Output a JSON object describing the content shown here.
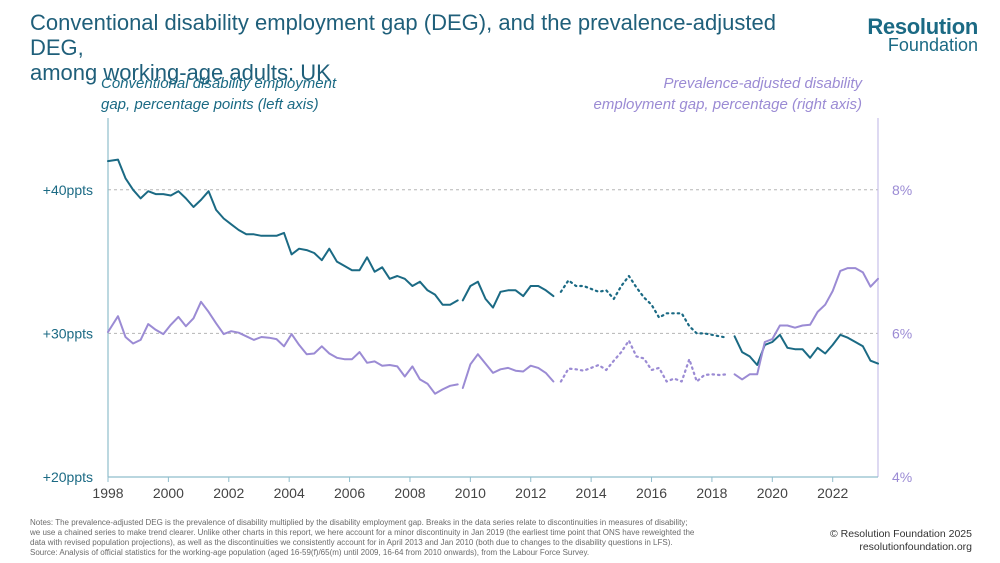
{
  "header": {
    "title_line1": "Conventional disability employment gap (DEG), and the prevalence-adjusted DEG,",
    "title_line2": "among working-age adults: UK"
  },
  "logo": {
    "name_line1": "Resolution",
    "name_line2": "Foundation"
  },
  "footer": {
    "notes_line1": "Notes: The prevalence-adjusted DEG is the prevalence of disability multiplied by the disability employment gap. Breaks in the data series relate to discontinuities in measures of disability;",
    "notes_line2": "we use a chained series to make trend clearer. Unlike other charts in this report, we here account for a minor discontinuity in Jan 2019 (the earliest time point that ONS have reweighted the",
    "notes_line3": "data with revised population projections), as well as the discontinuities we consistently account for in April 2013 and Jan 2010 (both due to changes to the disability questions in LFS).",
    "notes_line4": "Source: Analysis of official statistics for the working-age population (aged 16-59(f)/65(m) until 2009, 16-64 from 2010 onwards), from the Labour Force Survey.",
    "copyright": "© Resolution Foundation 2025",
    "website": "resolutionfoundation.org"
  },
  "colors": {
    "teal": "#1b6a84",
    "purple": "#9b8bd4",
    "title": "#1f5f7a",
    "grid": "#b5b5b5"
  },
  "chart_data": {
    "type": "line",
    "left_axis_label_line1": "Conventional disability employment",
    "left_axis_label_line2": "gap, percentage points (left axis)",
    "right_axis_label_line1": "Prevalence-adjusted disability",
    "right_axis_label_line2": "employment gap, percentage (right axis)",
    "y_left": {
      "min": 20,
      "max": 45,
      "ticks": [
        20,
        30,
        40
      ],
      "tick_labels": [
        "+20ppts",
        "+30ppts",
        "+40ppts"
      ]
    },
    "y_right": {
      "min": 4,
      "max": 9,
      "ticks": [
        4,
        6,
        8
      ],
      "tick_labels": [
        "4%",
        "6%",
        "8%"
      ]
    },
    "x": {
      "min": 1998,
      "max": 2023.5,
      "ticks": [
        1998,
        2000,
        2002,
        2004,
        2006,
        2008,
        2010,
        2012,
        2014,
        2016,
        2018,
        2020,
        2022
      ],
      "tick_labels": [
        "1998",
        "2000",
        "2002",
        "2004",
        "2006",
        "2008",
        "2010",
        "2012",
        "2014",
        "2016",
        "2018",
        "2020",
        "2022"
      ]
    },
    "gridlines_at_left_values": [
      30,
      40
    ],
    "series": [
      {
        "name": "Conventional DEG 1998-2009",
        "axis": "left",
        "color": "teal",
        "style": "solid",
        "x": [
          1998,
          1998.33,
          1998.58,
          1998.83,
          1999.08,
          1999.33,
          1999.58,
          1999.83,
          2000.08,
          2000.33,
          2000.58,
          2000.83,
          2001.08,
          2001.33,
          2001.58,
          2001.83,
          2002.08,
          2002.33,
          2002.58,
          2002.83,
          2003.08,
          2003.33,
          2003.58,
          2003.83,
          2004.08,
          2004.33,
          2004.58,
          2004.83,
          2005.08,
          2005.33,
          2005.58,
          2005.83,
          2006.08,
          2006.33,
          2006.58,
          2006.83,
          2007.08,
          2007.33,
          2007.58,
          2007.83,
          2008.08,
          2008.33,
          2008.58,
          2008.83,
          2009.08,
          2009.33,
          2009.58
        ],
        "values": [
          42.0,
          42.1,
          40.8,
          40.0,
          39.4,
          39.9,
          39.7,
          39.7,
          39.6,
          39.9,
          39.4,
          38.8,
          39.3,
          39.9,
          38.6,
          38.0,
          37.6,
          37.2,
          36.9,
          36.9,
          36.8,
          36.8,
          36.8,
          37.0,
          35.5,
          35.9,
          35.8,
          35.6,
          35.1,
          35.9,
          35.0,
          34.7,
          34.4,
          34.4,
          35.3,
          34.3,
          34.6,
          33.8,
          34.0,
          33.8,
          33.3,
          33.6,
          33.0,
          32.7,
          32.0,
          32.0,
          32.3
        ]
      },
      {
        "name": "Conventional DEG 2010-2013",
        "axis": "left",
        "color": "teal",
        "style": "solid",
        "x": [
          2009.75,
          2010.0,
          2010.25,
          2010.5,
          2010.75,
          2011.0,
          2011.25,
          2011.5,
          2011.75,
          2012.0,
          2012.25,
          2012.5,
          2012.75
        ],
        "values": [
          32.3,
          33.3,
          33.6,
          32.4,
          31.8,
          32.9,
          33.0,
          33.0,
          32.6,
          33.3,
          33.3,
          33.0,
          32.6
        ]
      },
      {
        "name": "Conventional DEG 2013-2018",
        "axis": "left",
        "color": "teal",
        "style": "dotted",
        "x": [
          2013.0,
          2013.25,
          2013.5,
          2013.75,
          2014.0,
          2014.25,
          2014.5,
          2014.75,
          2015.0,
          2015.25,
          2015.5,
          2015.75,
          2016.0,
          2016.25,
          2016.5,
          2016.75,
          2017.0,
          2017.25,
          2017.5,
          2017.75,
          2018.0,
          2018.25,
          2018.5
        ],
        "values": [
          32.9,
          33.7,
          33.3,
          33.3,
          33.1,
          32.9,
          33.0,
          32.4,
          33.3,
          34.0,
          33.2,
          32.5,
          32.0,
          31.1,
          31.4,
          31.4,
          31.4,
          30.5,
          30.0,
          30.0,
          29.9,
          29.8,
          29.7
        ]
      },
      {
        "name": "Conventional DEG 2019-2023",
        "axis": "left",
        "color": "teal",
        "style": "solid",
        "x": [
          2018.75,
          2019.0,
          2019.25,
          2019.5,
          2019.75,
          2020.0,
          2020.25,
          2020.5,
          2020.75,
          2021.0,
          2021.25,
          2021.5,
          2021.75,
          2022.0,
          2022.25,
          2022.5,
          2022.75,
          2023.0,
          2023.25,
          2023.5
        ],
        "values": [
          29.8,
          28.7,
          28.4,
          27.8,
          29.2,
          29.4,
          29.9,
          29.0,
          28.9,
          28.9,
          28.3,
          29.0,
          28.6,
          29.2,
          29.9,
          29.7,
          29.4,
          29.1,
          28.1,
          27.9
        ]
      },
      {
        "name": "Prevalence-adjusted DEG 1998-2009",
        "axis": "right",
        "color": "purple",
        "style": "solid",
        "x": [
          1998,
          1998.33,
          1998.58,
          1998.83,
          1999.08,
          1999.33,
          1999.58,
          1999.83,
          2000.08,
          2000.33,
          2000.58,
          2000.83,
          2001.08,
          2001.33,
          2001.58,
          2001.83,
          2002.08,
          2002.33,
          2002.58,
          2002.83,
          2003.08,
          2003.33,
          2003.58,
          2003.83,
          2004.08,
          2004.33,
          2004.58,
          2004.83,
          2005.08,
          2005.33,
          2005.58,
          2005.83,
          2006.08,
          2006.33,
          2006.58,
          2006.83,
          2007.08,
          2007.33,
          2007.58,
          2007.83,
          2008.08,
          2008.33,
          2008.58,
          2008.83,
          2009.08,
          2009.33,
          2009.58
        ],
        "values": [
          6.02,
          6.24,
          5.95,
          5.86,
          5.91,
          6.13,
          6.05,
          5.99,
          6.12,
          6.23,
          6.1,
          6.21,
          6.44,
          6.3,
          6.14,
          5.99,
          6.03,
          6.01,
          5.96,
          5.91,
          5.95,
          5.94,
          5.92,
          5.82,
          5.99,
          5.84,
          5.71,
          5.72,
          5.82,
          5.72,
          5.66,
          5.64,
          5.64,
          5.74,
          5.59,
          5.61,
          5.55,
          5.56,
          5.54,
          5.4,
          5.54,
          5.36,
          5.3,
          5.16,
          5.22,
          5.27,
          5.29
        ]
      },
      {
        "name": "Prevalence-adjusted DEG 2010-2013",
        "axis": "right",
        "color": "purple",
        "style": "solid",
        "x": [
          2009.75,
          2010.0,
          2010.25,
          2010.5,
          2010.75,
          2011.0,
          2011.25,
          2011.5,
          2011.75,
          2012.0,
          2012.25,
          2012.5,
          2012.75
        ],
        "values": [
          5.24,
          5.57,
          5.71,
          5.58,
          5.45,
          5.5,
          5.52,
          5.48,
          5.47,
          5.55,
          5.52,
          5.45,
          5.33
        ]
      },
      {
        "name": "Prevalence-adjusted DEG 2013-2018",
        "axis": "right",
        "color": "purple",
        "style": "dotted",
        "x": [
          2013.0,
          2013.25,
          2013.5,
          2013.75,
          2014.0,
          2014.25,
          2014.5,
          2014.75,
          2015.0,
          2015.25,
          2015.5,
          2015.75,
          2016.0,
          2016.25,
          2016.5,
          2016.75,
          2017.0,
          2017.25,
          2017.5,
          2017.75,
          2018.0,
          2018.25,
          2018.5
        ],
        "values": [
          5.33,
          5.51,
          5.5,
          5.48,
          5.52,
          5.56,
          5.49,
          5.62,
          5.74,
          5.9,
          5.68,
          5.65,
          5.49,
          5.52,
          5.33,
          5.37,
          5.33,
          5.64,
          5.33,
          5.42,
          5.43,
          5.42,
          5.43
        ]
      },
      {
        "name": "Prevalence-adjusted DEG 2019-2023",
        "axis": "right",
        "color": "purple",
        "style": "solid",
        "x": [
          2018.75,
          2019.0,
          2019.25,
          2019.5,
          2019.75,
          2020.0,
          2020.25,
          2020.5,
          2020.75,
          2021.0,
          2021.25,
          2021.5,
          2021.75,
          2022.0,
          2022.25,
          2022.5,
          2022.75,
          2023.0,
          2023.25,
          2023.5
        ],
        "values": [
          5.43,
          5.36,
          5.43,
          5.43,
          5.88,
          5.92,
          6.11,
          6.11,
          6.08,
          6.11,
          6.12,
          6.3,
          6.4,
          6.59,
          6.87,
          6.91,
          6.91,
          6.85,
          6.65,
          6.76
        ]
      }
    ]
  }
}
